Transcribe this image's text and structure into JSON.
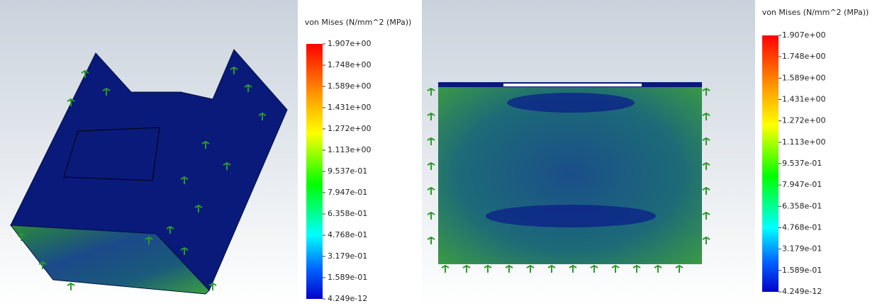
{
  "panels": [
    {
      "legend": {
        "title": "von Mises (N/mm^2 (MPa))",
        "labels": [
          "1.907e+00",
          "1.748e+00",
          "1.589e+00",
          "1.431e+00",
          "1.272e+00",
          "1.113e+00",
          "9.537e-01",
          "7.947e-01",
          "6.358e-01",
          "4.768e-01",
          "3.179e-01",
          "1.589e-01",
          "4.249e-12"
        ]
      }
    },
    {
      "legend": {
        "title": "von Mises (N/mm^2 (MPa))",
        "labels": [
          "1.907e+00",
          "1.748e+00",
          "1.589e+00",
          "1.431e+00",
          "1.272e+00",
          "1.113e+00",
          "9.537e-01",
          "7.947e-01",
          "6.358e-01",
          "4.768e-01",
          "3.179e-01",
          "1.589e-01",
          "4.249e-12"
        ]
      }
    }
  ]
}
